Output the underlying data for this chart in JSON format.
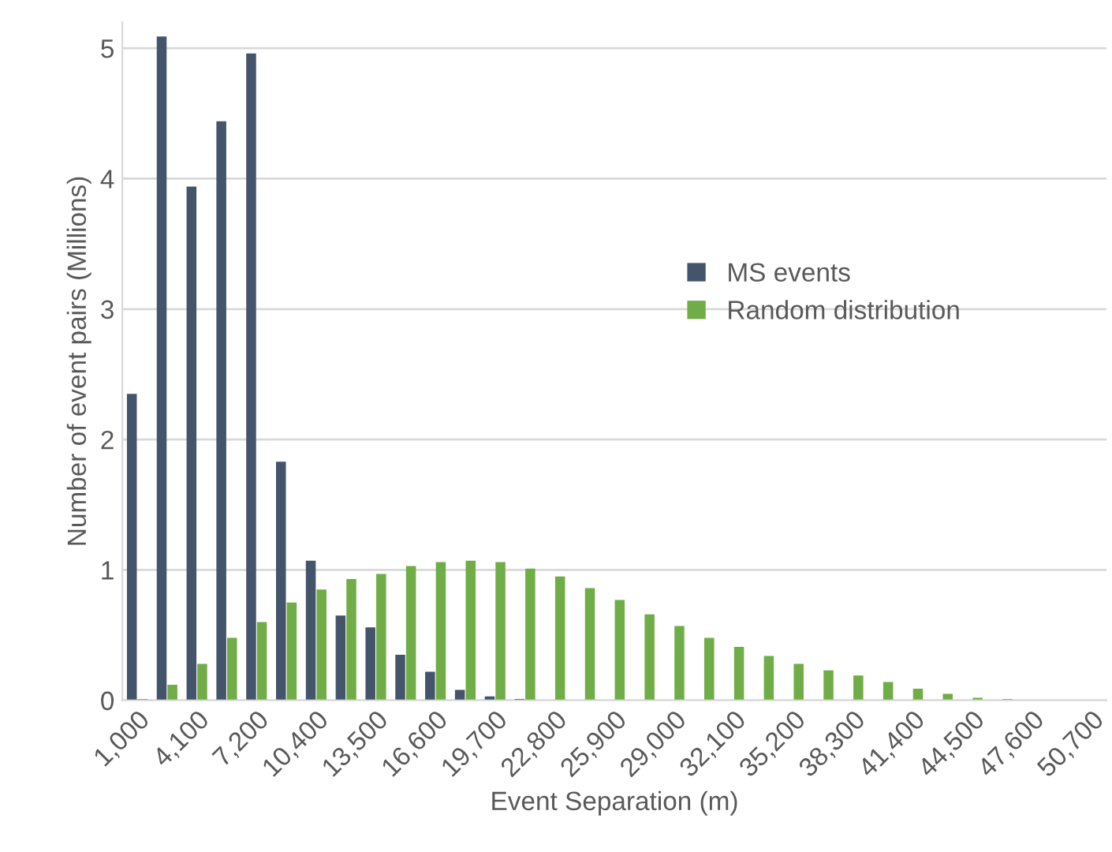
{
  "chart_data": {
    "type": "bar",
    "xlabel": "Event Separation (m)",
    "ylabel": "Number of event pairs (Millions)",
    "categories": [
      "1,000",
      null,
      "4,100",
      null,
      "7,200",
      null,
      "10,400",
      null,
      "13,500",
      null,
      "16,600",
      null,
      "19,700",
      null,
      "22,800",
      null,
      "25,900",
      null,
      "29,000",
      null,
      "32,100",
      null,
      "35,200",
      null,
      "38,300",
      null,
      "41,400",
      null,
      "44,500",
      null,
      "47,600",
      null,
      "50,700"
    ],
    "series": [
      {
        "name": "MS events",
        "color": "#44546a",
        "values": [
          2.35,
          5.09,
          3.94,
          4.44,
          4.96,
          1.83,
          1.07,
          0.65,
          0.56,
          0.35,
          0.22,
          0.08,
          0.03,
          0.01,
          0,
          0,
          0,
          0,
          0,
          0,
          0,
          0,
          0,
          0,
          0,
          0,
          0,
          0,
          0,
          0,
          0,
          0,
          0
        ]
      },
      {
        "name": "Random distribution",
        "color": "#70ad47",
        "values": [
          0.01,
          0.12,
          0.28,
          0.48,
          0.6,
          0.75,
          0.85,
          0.93,
          0.97,
          1.03,
          1.06,
          1.07,
          1.06,
          1.01,
          0.95,
          0.86,
          0.77,
          0.66,
          0.57,
          0.48,
          0.41,
          0.34,
          0.28,
          0.23,
          0.19,
          0.14,
          0.09,
          0.05,
          0.02,
          0.01,
          0,
          0,
          0
        ]
      }
    ],
    "ylim": [
      0,
      5.2
    ],
    "yticks": [
      0,
      1,
      2,
      3,
      4,
      5
    ],
    "grid": "y",
    "legend": "right"
  }
}
